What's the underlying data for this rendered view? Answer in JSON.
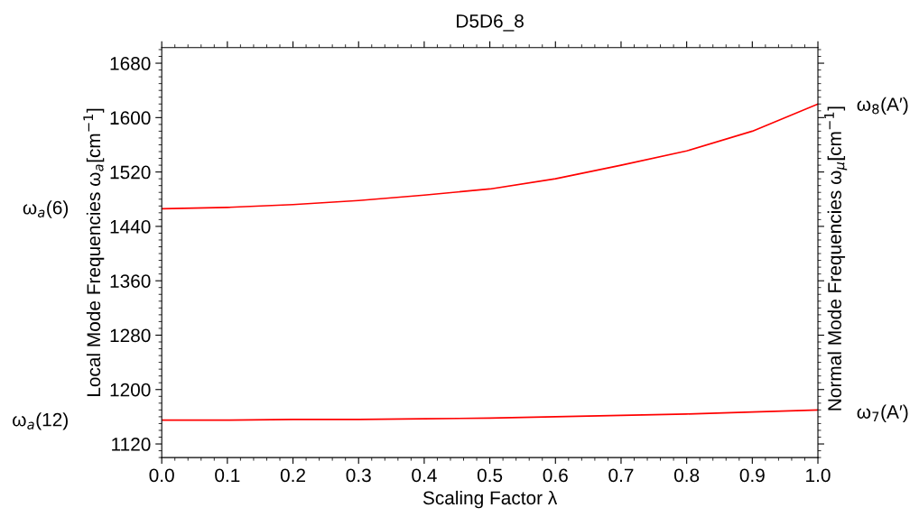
{
  "chart_data": {
    "type": "line",
    "title": "D5D6_8",
    "xlabel": "Scaling Factor λ",
    "ylabel": "Local Mode Frequencies ω$_{a}$[cm$^{−1}$]",
    "y2label": "Normal Mode Frequencies ω$_{μ}$[cm$^{−1}$]",
    "x": [
      0,
      0.1,
      0.2,
      0.3,
      0.4,
      0.5,
      0.6,
      0.7,
      0.8,
      0.9,
      1.0
    ],
    "series": [
      {
        "color": "#ff0000",
        "values": [
          1466,
          1468,
          1472,
          1478,
          1486,
          1495,
          1510,
          1530,
          1551,
          1580,
          1620
        ]
      },
      {
        "color": "#ff0000",
        "values": [
          1155,
          1155,
          1156,
          1156,
          1157,
          1158,
          1160,
          1162,
          1164,
          1167,
          1170
        ]
      }
    ],
    "annotations": [
      "ω$_{a}$(6)",
      "ω$_{a}$(12)",
      "ω$_{8}$(A′)",
      "ω$_{7}$(A′)"
    ],
    "xlim": [
      0,
      1.0
    ],
    "xticks": [
      {
        "value": 0,
        "label": "0.0"
      },
      0.1,
      0.2,
      0.3,
      0.4,
      0.5,
      0.6,
      0.7,
      0.8,
      0.9,
      {
        "value": 1,
        "label": "1.0"
      }
    ],
    "ylim": [
      1100,
      1703
    ],
    "yticks": [
      1120,
      1200,
      1280,
      1360,
      1440,
      1520,
      1600,
      1680
    ],
    "grid": false,
    "legend": false,
    "marker": "none",
    "line_style": "solid"
  }
}
